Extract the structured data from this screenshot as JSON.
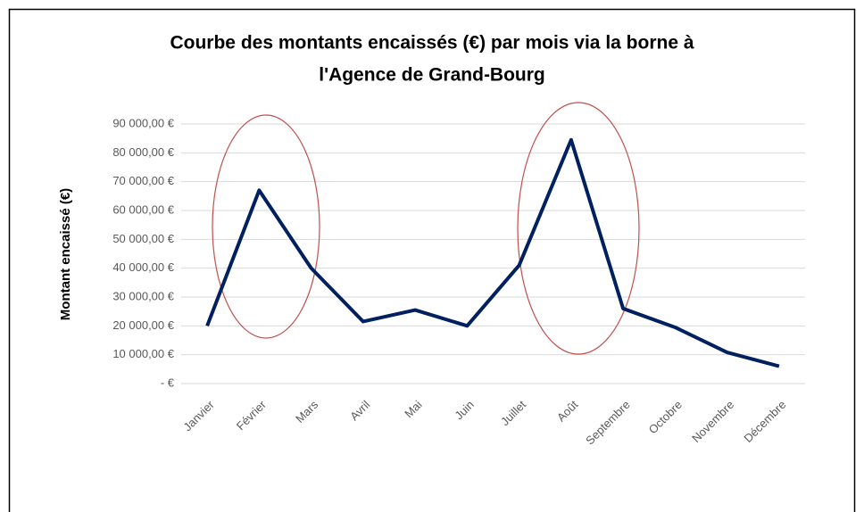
{
  "chart_data": {
    "type": "line",
    "title": [
      "Courbe des montants encaissés (€) par mois via la borne à",
      "l'Agence de Grand-Bourg"
    ],
    "y_label": "Montant encaissé (€)",
    "categories": [
      "Janvier",
      "Février",
      "Mars",
      "Avril",
      "Mai",
      "Juin",
      "Juillet",
      "Août",
      "Septembre",
      "Octobre",
      "Novembre",
      "Décembre"
    ],
    "series": [
      {
        "name": "Montant encaissé",
        "color": "#002060",
        "values": [
          20000,
          67000,
          40000,
          21500,
          25500,
          20000,
          41000,
          84500,
          26000,
          19500,
          10800,
          6000
        ]
      }
    ],
    "ylim": [
      0,
      90000
    ],
    "yticks": [
      {
        "value": 0,
        "label": "-  €"
      },
      {
        "value": 10000,
        "label": "10 000,00 €"
      },
      {
        "value": 20000,
        "label": "20 000,00 €"
      },
      {
        "value": 30000,
        "label": "30 000,00 €"
      },
      {
        "value": 40000,
        "label": "40 000,00 €"
      },
      {
        "value": 50000,
        "label": "50 000,00 €"
      },
      {
        "value": 60000,
        "label": "60 000,00 €"
      },
      {
        "value": 70000,
        "label": "70 000,00 €"
      },
      {
        "value": 80000,
        "label": "80 000,00 €"
      },
      {
        "value": 90000,
        "label": "90 000,00 €"
      }
    ],
    "grid": true
  }
}
